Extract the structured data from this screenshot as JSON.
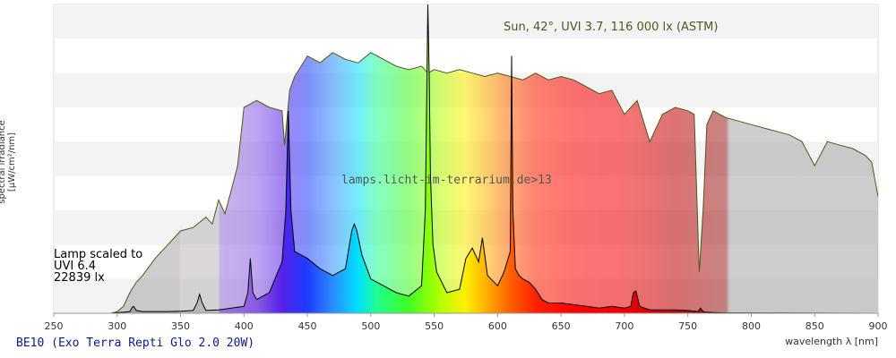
{
  "chart_data": {
    "type": "area",
    "xlabel": "wavelength λ [nm]",
    "ylabel": "spectral irradiance [µW/cm²/nm]",
    "xlim": [
      250,
      900
    ],
    "x_ticks": [
      "250",
      "300",
      "350",
      "400",
      "450",
      "500",
      "550",
      "600",
      "650",
      "700",
      "750",
      "800",
      "850",
      "900"
    ],
    "ylim": [
      0,
      9
    ],
    "grid": "horizontal bands",
    "annotations": {
      "sun": "Sun, 42°, UVI 3.7, 116 000 lx (ASTM)",
      "lamp_line1": "Lamp scaled to",
      "lamp_line2": "UVI 6.4",
      "lamp_line3": "22839 lx",
      "watermark": "lamps.licht-im-terrarium.de>13"
    },
    "lamp_name": "BE10 (Exo Terra Repti Glo 2.0 20W)",
    "series": [
      {
        "role": "sun",
        "x": [
          295,
          300,
          305,
          310,
          315,
          320,
          330,
          340,
          350,
          360,
          370,
          375,
          380,
          385,
          390,
          395,
          400,
          405,
          410,
          420,
          430,
          432,
          436,
          440,
          445,
          450,
          460,
          470,
          480,
          490,
          500,
          505,
          510,
          520,
          530,
          540,
          545,
          550,
          560,
          570,
          580,
          590,
          600,
          610,
          620,
          630,
          640,
          650,
          660,
          670,
          680,
          690,
          700,
          710,
          720,
          730,
          740,
          750,
          755,
          759,
          762,
          765,
          770,
          780,
          790,
          800,
          810,
          820,
          830,
          840,
          850,
          860,
          870,
          880,
          890,
          895,
          900
        ],
        "y": [
          0,
          0.05,
          0.2,
          0.6,
          0.9,
          1.1,
          1.6,
          2.0,
          2.4,
          2.5,
          2.8,
          2.6,
          3.3,
          2.9,
          3.6,
          4.3,
          6.0,
          6.1,
          6.2,
          6.0,
          5.9,
          4.9,
          6.5,
          6.9,
          7.2,
          7.5,
          7.3,
          7.6,
          7.4,
          7.3,
          7.6,
          7.5,
          7.4,
          7.2,
          7.1,
          7.2,
          7.0,
          7.1,
          7.0,
          7.1,
          7.0,
          6.9,
          7.0,
          6.9,
          6.8,
          7.0,
          6.8,
          6.9,
          6.8,
          6.6,
          6.4,
          6.5,
          5.8,
          6.2,
          5.0,
          5.8,
          6.0,
          5.9,
          5.8,
          1.2,
          3.0,
          5.5,
          5.9,
          5.7,
          5.6,
          5.5,
          5.4,
          5.3,
          5.2,
          5.0,
          4.3,
          5.0,
          4.9,
          4.8,
          4.6,
          4.4,
          3.4
        ]
      },
      {
        "role": "lamp",
        "x": [
          295,
          300,
          305,
          310,
          312,
          313,
          315,
          320,
          330,
          340,
          350,
          360,
          363,
          365,
          367,
          370,
          380,
          390,
          400,
          403,
          405,
          407,
          410,
          420,
          430,
          433,
          435,
          437,
          440,
          450,
          460,
          470,
          480,
          485,
          487,
          489,
          493,
          500,
          510,
          520,
          530,
          540,
          543,
          545,
          546,
          547,
          549,
          552,
          560,
          570,
          575,
          580,
          585,
          588,
          592,
          600,
          605,
          610,
          611,
          612,
          614,
          617,
          620,
          625,
          630,
          635,
          640,
          650,
          660,
          670,
          680,
          690,
          700,
          705,
          707,
          709,
          712,
          720,
          730,
          740,
          750,
          758,
          760,
          762,
          765,
          770,
          780,
          790,
          900
        ],
        "y": [
          0,
          0.02,
          0.03,
          0.05,
          0.18,
          0.2,
          0.08,
          0.05,
          0.05,
          0.05,
          0.06,
          0.08,
          0.3,
          0.55,
          0.3,
          0.08,
          0.1,
          0.15,
          0.2,
          0.6,
          1.6,
          0.6,
          0.4,
          0.6,
          1.5,
          3.0,
          5.9,
          3.0,
          1.8,
          1.6,
          1.3,
          1.1,
          1.3,
          2.4,
          2.6,
          2.4,
          1.7,
          1.0,
          0.8,
          0.6,
          0.5,
          0.8,
          3.0,
          9.0,
          7.0,
          4.0,
          2.0,
          1.2,
          0.6,
          0.7,
          1.6,
          1.9,
          1.5,
          2.2,
          1.1,
          0.8,
          1.2,
          1.8,
          7.5,
          3.0,
          1.3,
          1.1,
          1.0,
          0.9,
          0.7,
          0.4,
          0.3,
          0.3,
          0.25,
          0.2,
          0.15,
          0.2,
          0.15,
          0.2,
          0.6,
          0.65,
          0.2,
          0.1,
          0.1,
          0.1,
          0.08,
          0.05,
          0.15,
          0.05,
          0.03,
          0.02,
          0.01,
          0.01,
          0
        ]
      }
    ]
  }
}
